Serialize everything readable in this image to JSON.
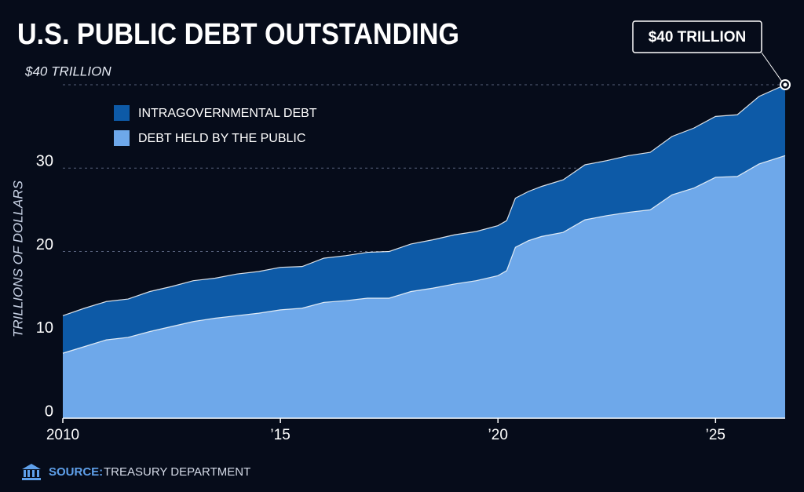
{
  "chart_data": {
    "type": "stacked_area",
    "title": "U.S. PUBLIC DEBT OUTSTANDING",
    "y_label": "TRILLIONS OF DOLLARS",
    "annotation": "$40 TRILLION",
    "source": {
      "label": "SOURCE:",
      "text": "TREASURY DEPARTMENT"
    },
    "x": [
      2010,
      2010.5,
      2011,
      2011.5,
      2012,
      2012.5,
      2013,
      2013.5,
      2014,
      2014.5,
      2015,
      2015.5,
      2016,
      2016.5,
      2017,
      2017.5,
      2018,
      2018.5,
      2019,
      2019.5,
      2020,
      2020.2,
      2020.4,
      2020.7,
      2021,
      2021.5,
      2022,
      2022.5,
      2023,
      2023.5,
      2024,
      2024.5,
      2025,
      2025.5,
      2026,
      2026.6
    ],
    "series": [
      {
        "name": "DEBT HELD BY THE PUBLIC",
        "color": "#6ea8ea",
        "values": [
          7.8,
          8.6,
          9.4,
          9.7,
          10.4,
          11.0,
          11.6,
          12.0,
          12.3,
          12.6,
          13.0,
          13.2,
          13.9,
          14.1,
          14.4,
          14.4,
          15.2,
          15.6,
          16.1,
          16.5,
          17.1,
          17.7,
          20.5,
          21.3,
          21.8,
          22.3,
          23.8,
          24.3,
          24.7,
          25.0,
          26.8,
          27.6,
          28.9,
          29.0,
          30.5,
          31.5
        ]
      },
      {
        "name": "INTRAGOVERNMENTAL DEBT",
        "color": "#0d5aa7",
        "values": [
          4.5,
          4.6,
          4.6,
          4.6,
          4.8,
          4.8,
          4.9,
          4.8,
          5.0,
          5.0,
          5.1,
          5.0,
          5.3,
          5.4,
          5.5,
          5.6,
          5.7,
          5.8,
          5.9,
          5.9,
          6.0,
          6.0,
          5.9,
          5.9,
          6.0,
          6.3,
          6.6,
          6.6,
          6.8,
          6.9,
          7.0,
          7.2,
          7.3,
          7.4,
          8.1,
          8.5
        ]
      }
    ],
    "xlim": [
      2010,
      2026.6
    ],
    "xticks": [
      2010,
      {
        "value": 2015,
        "label": "’15"
      },
      {
        "value": 2020,
        "label": "’20"
      },
      {
        "value": 2025,
        "label": "’25"
      }
    ],
    "ylim": [
      0,
      40
    ],
    "yticks": [
      0,
      10,
      20,
      30,
      {
        "value": 40,
        "label": "$40 TRILLION"
      }
    ],
    "grid": true,
    "legend": "upper left"
  }
}
